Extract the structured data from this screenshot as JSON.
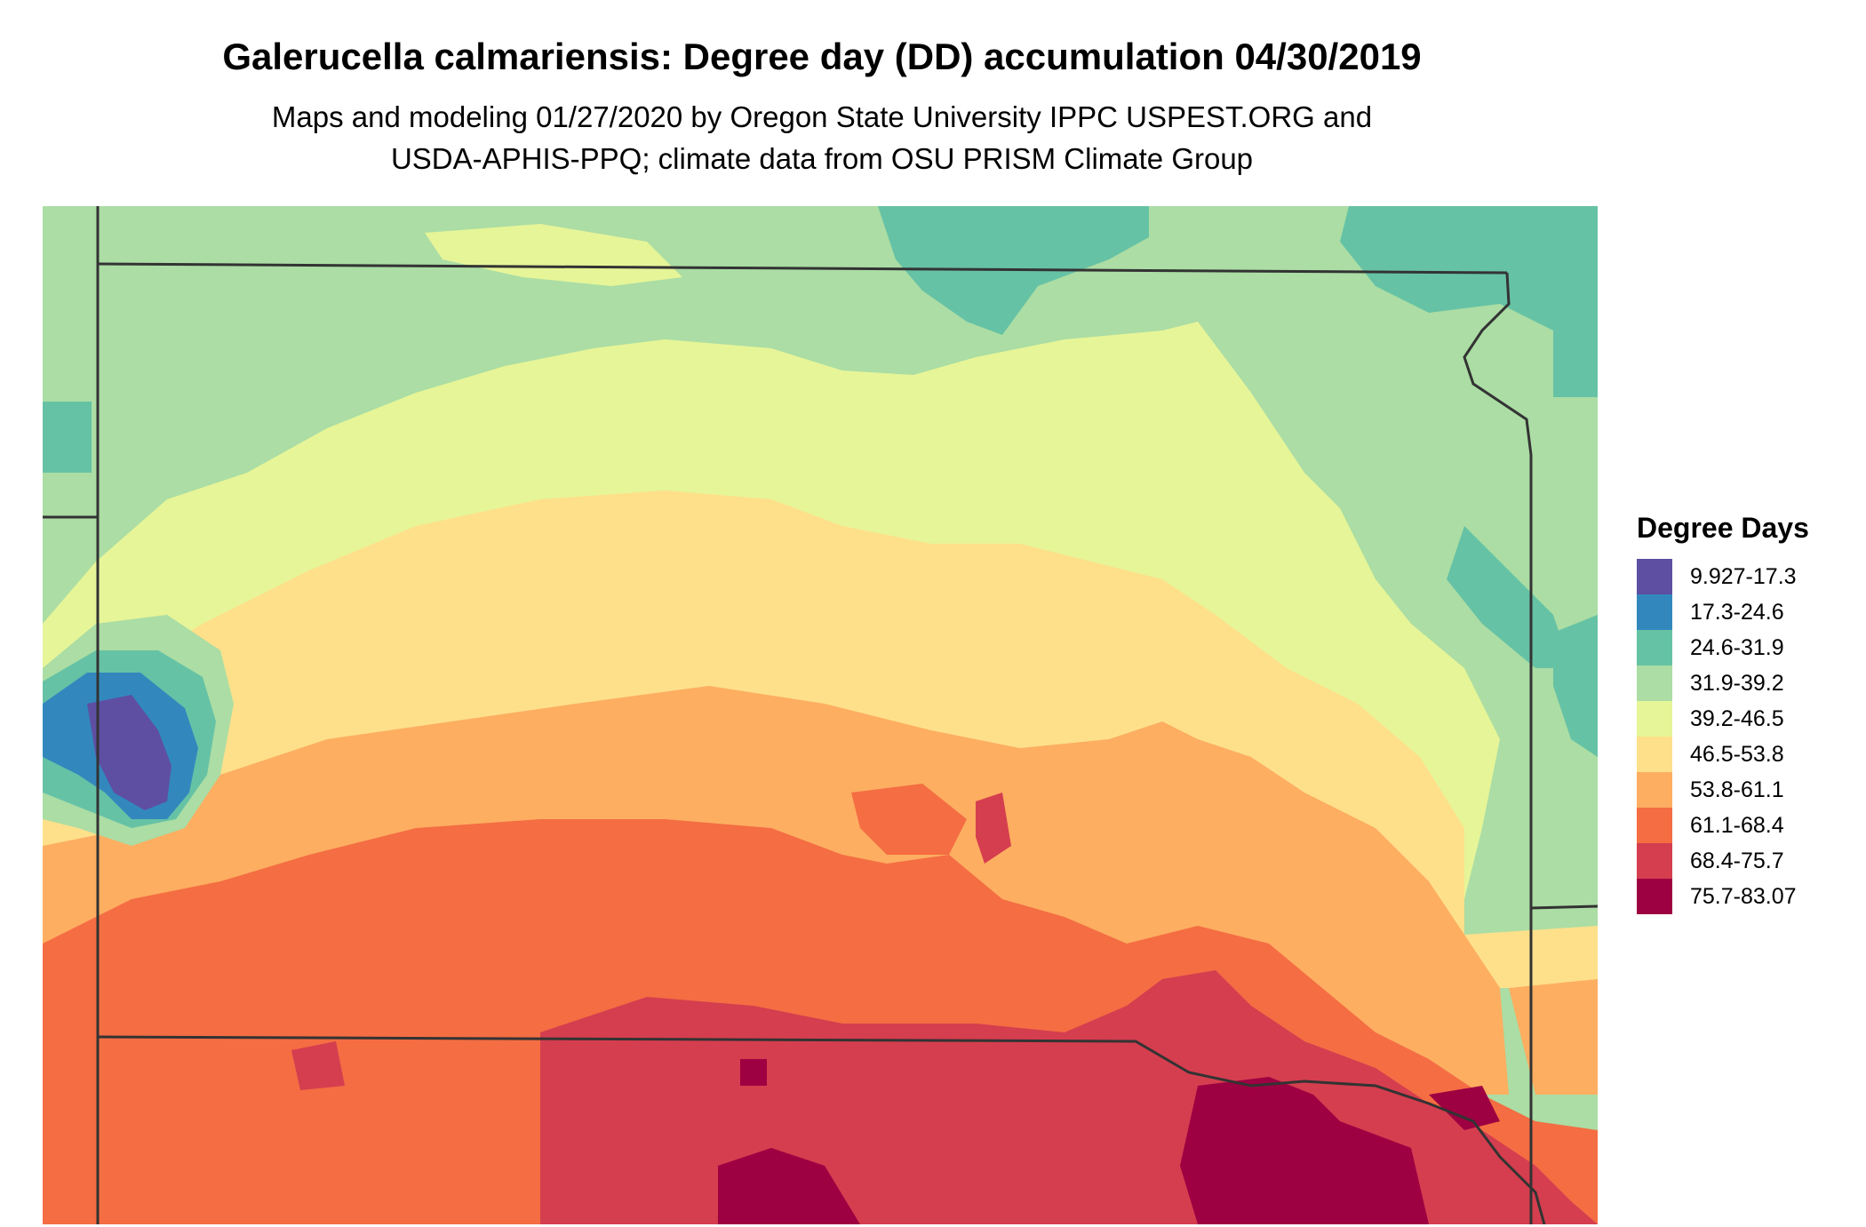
{
  "title": "Galerucella calmariensis: Degree day (DD) accumulation 04/30/2019",
  "subtitle_line1": "Maps and modeling 01/27/2020 by Oregon State University IPPC USPEST.ORG and",
  "subtitle_line2": "USDA-APHIS-PPQ; climate data from OSU PRISM Climate Group",
  "legend": {
    "title": "Degree Days",
    "classes": [
      {
        "label": "9.927-17.3",
        "color": "#5e4fa2"
      },
      {
        "label": "17.3-24.6",
        "color": "#3288bd"
      },
      {
        "label": "24.6-31.9",
        "color": "#66c2a5"
      },
      {
        "label": "31.9-39.2",
        "color": "#abdda4"
      },
      {
        "label": "39.2-46.5",
        "color": "#e6f598"
      },
      {
        "label": "46.5-53.8",
        "color": "#fee08b"
      },
      {
        "label": "53.8-61.1",
        "color": "#fdae61"
      },
      {
        "label": "61.1-68.4",
        "color": "#f46d43"
      },
      {
        "label": "68.4-75.7",
        "color": "#d53e4f"
      },
      {
        "label": "75.7-83.07",
        "color": "#9e0142"
      }
    ]
  },
  "map": {
    "region": "South Dakota and surrounding area",
    "boundary_color": "#333333",
    "pattern": "degree days increase from north to south; cool pocket in west (Black Hills); warmest along southern border"
  }
}
